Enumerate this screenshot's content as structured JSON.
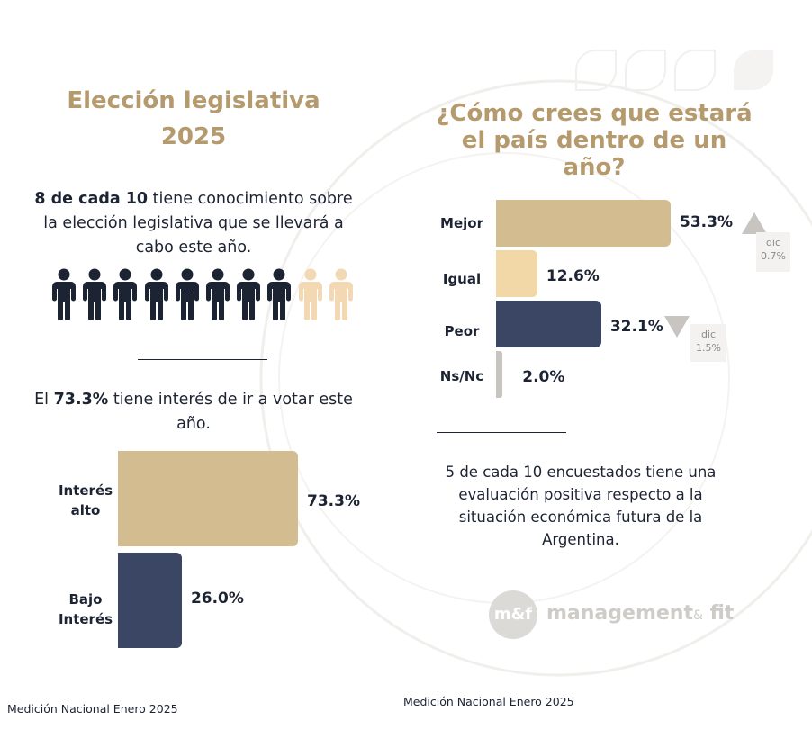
{
  "colors": {
    "gold": "#b59a6d",
    "tan": "#d4bc91",
    "light_tan": "#f2d8a7",
    "navy": "#3a4663",
    "dark_navy": "#1c2333",
    "person_light": "#f2d8b3",
    "gray": "#c8c5c0"
  },
  "left": {
    "title_line1": "Elección legislativa",
    "title_line2": "2025",
    "knowledge_bold": "8 de cada 10",
    "knowledge_line1_rest": " tiene conocimiento sobre",
    "knowledge_line2": "la elección legislativa que se llevará a",
    "knowledge_line3": "cabo este año.",
    "people_icon": "person-icon",
    "people_highlighted": 8,
    "people_total": 10,
    "interest_prefix": "El ",
    "interest_bold": "73.3%",
    "interest_suffix": " tiene interés de ir a votar este",
    "interest_line2": "año."
  },
  "right": {
    "title_line1": "¿Cómo crees que estará",
    "title_line2": "el país dentro de un",
    "title_line3": "año?",
    "note_line1": "5 de cada 10 encuestados tiene una",
    "note_line2": "evaluación positiva respecto a la",
    "note_line3": "situación económica futura de la",
    "note_line4": "Argentina.",
    "change_mejor": {
      "direction": "up",
      "label": "dic",
      "value": "0.7%"
    },
    "change_peor": {
      "direction": "down",
      "label": "dic",
      "value": "1.5%"
    }
  },
  "logo": {
    "mark": "m&f",
    "text_main": "management",
    "text_amp": "&",
    "text_end": " fit"
  },
  "footer_left": "Medición Nacional Enero 2025",
  "footer_right": "Medición Nacional Enero 2025",
  "chart_data": [
    {
      "type": "bar",
      "orientation": "horizontal",
      "title": "Interés de ir a votar",
      "categories": [
        "Interés alto",
        "Bajo Interés"
      ],
      "category_lines": [
        [
          "Interés",
          "alto"
        ],
        [
          "Bajo",
          "Interés"
        ]
      ],
      "values": [
        73.3,
        26.0
      ],
      "value_labels": [
        "73.3%",
        "26.0%"
      ],
      "xlim": [
        0,
        100
      ],
      "xlabel": "",
      "ylabel": ""
    },
    {
      "type": "bar",
      "orientation": "horizontal",
      "title": "¿Cómo crees que estará el país dentro de un año?",
      "categories": [
        "Mejor",
        "Igual",
        "Peor",
        "Ns/Nc"
      ],
      "values": [
        53.3,
        12.6,
        32.1,
        2.0
      ],
      "value_labels": [
        "53.3%",
        "12.6%",
        "32.1%",
        "2.0%"
      ],
      "xlim": [
        0,
        100
      ],
      "xlabel": "",
      "ylabel": ""
    }
  ]
}
